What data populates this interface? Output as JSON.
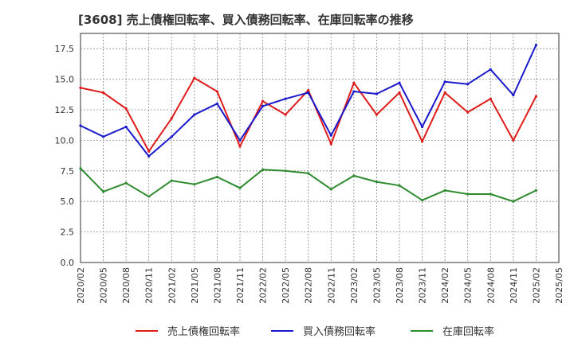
{
  "chart_data": {
    "type": "line",
    "title": "[3608]  売上債権回転率、買入債務回転率、在庫回転率の推移",
    "xlabel": "",
    "ylabel": "",
    "ylim": [
      0,
      18.75
    ],
    "yticks": [
      "0.0",
      "2.5",
      "5.0",
      "7.5",
      "10.0",
      "12.5",
      "15.0",
      "17.5"
    ],
    "categories": [
      "2020/02",
      "2020/05",
      "2020/08",
      "2020/11",
      "2021/02",
      "2021/05",
      "2021/08",
      "2021/11",
      "2022/02",
      "2022/05",
      "2022/08",
      "2022/11",
      "2023/02",
      "2023/05",
      "2023/08",
      "2023/11",
      "2024/02",
      "2024/05",
      "2024/08",
      "2024/11",
      "2025/02",
      "2025/05"
    ],
    "series": [
      {
        "name": "売上債権回転率",
        "color": "#e01b1b",
        "values": [
          14.3,
          13.9,
          12.6,
          9.1,
          11.8,
          15.1,
          14.0,
          9.5,
          13.2,
          12.1,
          14.1,
          9.7,
          14.7,
          12.1,
          13.9,
          9.9,
          13.9,
          12.3,
          13.4,
          10.0,
          13.6,
          null
        ]
      },
      {
        "name": "買入債務回転率",
        "color": "#1a1acc",
        "values": [
          11.2,
          10.3,
          11.1,
          8.7,
          10.3,
          12.1,
          13.0,
          10.0,
          12.8,
          13.4,
          13.9,
          10.4,
          14.0,
          13.8,
          14.7,
          11.1,
          14.8,
          14.6,
          15.8,
          13.7,
          17.8,
          null
        ]
      },
      {
        "name": "在庫回転率",
        "color": "#2e8b2e",
        "values": [
          7.7,
          5.8,
          6.5,
          5.4,
          6.7,
          6.4,
          7.0,
          6.1,
          7.6,
          7.5,
          7.3,
          6.0,
          7.1,
          6.6,
          6.3,
          5.1,
          5.9,
          5.6,
          5.6,
          5.0,
          5.9,
          null
        ]
      }
    ],
    "grid": true,
    "legend_position": "bottom"
  }
}
